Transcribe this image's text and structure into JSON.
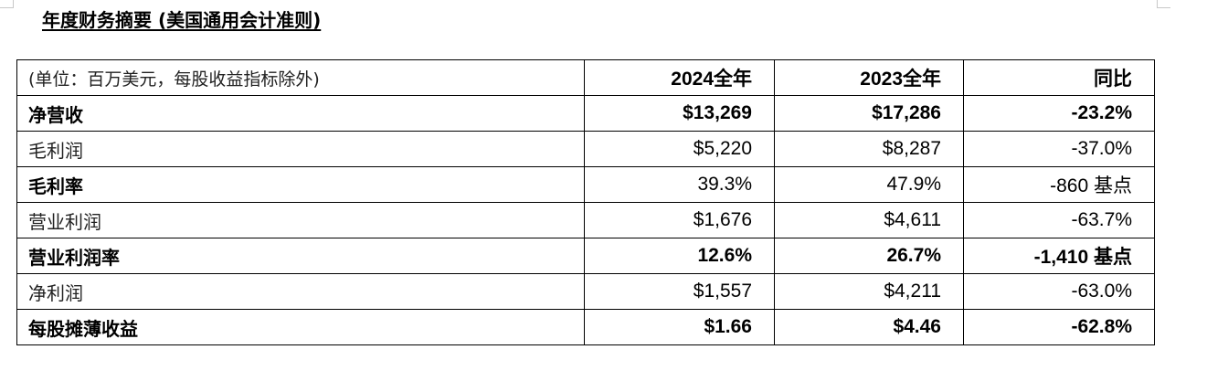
{
  "title": "年度财务摘要 (美国通用会计准则)",
  "header": {
    "unit_note": "(单位：百万美元，每股收益指标除外)",
    "col_2024": "2024全年",
    "col_2023": "2023全年",
    "col_yoy": "同比"
  },
  "rows": [
    {
      "label": "净营收",
      "v2024": "$13,269",
      "v2023": "$17,286",
      "yoy": "-23.2%",
      "bold": true
    },
    {
      "label": "毛利润",
      "v2024": "$5,220",
      "v2023": "$8,287",
      "yoy": "-37.0%",
      "bold": false
    },
    {
      "label": "毛利率",
      "v2024": "39.3%",
      "v2023": "47.9%",
      "yoy": "-860 基点",
      "bold": false,
      "label_bold": true
    },
    {
      "label": "营业利润",
      "v2024": "$1,676",
      "v2023": "$4,611",
      "yoy": "-63.7%",
      "bold": false
    },
    {
      "label": "营业利润率",
      "v2024": "12.6%",
      "v2023": "26.7%",
      "yoy": "-1,410 基点",
      "bold": true
    },
    {
      "label": "净利润",
      "v2024": "$1,557",
      "v2023": "$4,211",
      "yoy": "-63.0%",
      "bold": false
    },
    {
      "label": "每股摊薄收益",
      "v2024": "$1.66",
      "v2023": "$4.46",
      "yoy": "-62.8%",
      "bold": true
    }
  ]
}
